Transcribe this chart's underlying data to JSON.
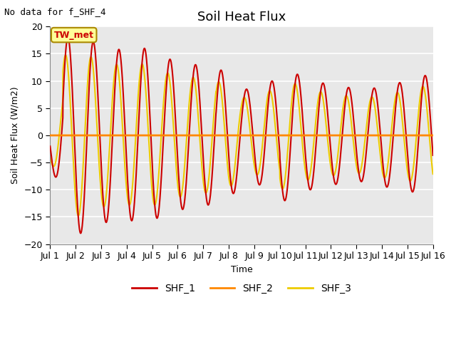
{
  "title": "Soil Heat Flux",
  "no_data_text": "No data for f_SHF_4",
  "tw_met_label": "TW_met",
  "xlabel": "Time",
  "ylabel": "Soil Heat Flux (W/m2)",
  "ylim": [
    -20,
    20
  ],
  "xlim": [
    0,
    15
  ],
  "xtick_labels": [
    "Jul 1",
    "Jul 2",
    "Jul 3",
    "Jul 4",
    "Jul 5",
    "Jul 6",
    "Jul 7",
    "Jul 8",
    "Jul 9",
    "Jul 10",
    "Jul 11",
    "Jul 12",
    "Jul 13",
    "Jul 14",
    "Jul 15",
    "Jul 16"
  ],
  "xtick_positions": [
    0,
    1,
    2,
    3,
    4,
    5,
    6,
    7,
    8,
    9,
    10,
    11,
    12,
    13,
    14,
    15
  ],
  "yticks": [
    -20,
    -15,
    -10,
    -5,
    0,
    5,
    10,
    15,
    20
  ],
  "shf1_color": "#cc0000",
  "shf2_color": "#ff8800",
  "shf3_color": "#eecc00",
  "plot_bg_color": "#e8e8e8",
  "fig_bg_color": "#ffffff",
  "grid_color": "#ffffff",
  "title_fontsize": 13,
  "axis_label_fontsize": 9,
  "tick_fontsize": 9,
  "legend_labels": [
    "SHF_1",
    "SHF_2",
    "SHF_3"
  ],
  "shf1_linewidth": 1.5,
  "shf2_linewidth": 2.0,
  "shf3_linewidth": 1.5
}
